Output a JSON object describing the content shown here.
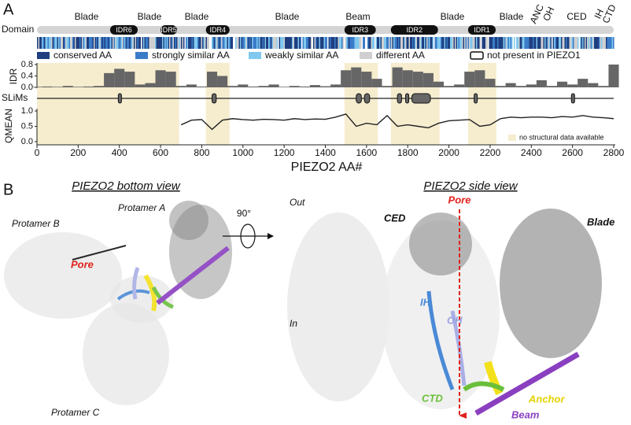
{
  "panel_a": {
    "label": "A",
    "domain_row_label": "Domain",
    "domains": [
      "Blade",
      "Blade",
      "Blade",
      "Blade",
      "Beam",
      "Blade",
      "Blade",
      "ANC",
      "OH",
      "CED",
      "IH",
      "CTD"
    ],
    "idrs": [
      {
        "name": "IDR6",
        "range": [
          355,
          489
        ]
      },
      {
        "name": "IDR5",
        "range": [
          600,
          680
        ]
      },
      {
        "name": "IDR4",
        "range": [
          820,
          935
        ]
      },
      {
        "name": "IDR3",
        "range": [
          1493,
          1645
        ]
      },
      {
        "name": "IDR2",
        "range": [
          1718,
          1947
        ]
      },
      {
        "name": "IDR1",
        "range": [
          2093,
          2227
        ]
      }
    ],
    "legend": [
      {
        "name": "conserved AA",
        "color": "#1f3f80"
      },
      {
        "name": "strongly similar AA",
        "color": "#3b7cc9"
      },
      {
        "name": "weakly similar AA",
        "color": "#80c8ef"
      },
      {
        "name": "different AA",
        "color": "#cfcfcf"
      },
      {
        "name": "not present in PIEZO1",
        "color": "#ffffff"
      }
    ],
    "unstructured_regions": [
      [
        0,
        690
      ],
      [
        820,
        935
      ],
      [
        1493,
        1655
      ],
      [
        1718,
        1955
      ],
      [
        2093,
        2230
      ]
    ],
    "x": [
      0,
      50,
      100,
      150,
      200,
      250,
      300,
      350,
      400,
      450,
      500,
      550,
      600,
      650,
      700,
      750,
      800,
      850,
      900,
      950,
      1000,
      1050,
      1100,
      1150,
      1200,
      1250,
      1300,
      1350,
      1400,
      1450,
      1500,
      1550,
      1600,
      1650,
      1700,
      1750,
      1800,
      1850,
      1900,
      1950,
      2000,
      2050,
      2100,
      2150,
      2200,
      2250,
      2300,
      2350,
      2400,
      2450,
      2500,
      2550,
      2600,
      2650,
      2700,
      2750,
      2800
    ],
    "idr": {
      "label": "IDR",
      "ylim": [
        0,
        0.8
      ],
      "yticks": [
        {
          "value": 0,
          "label": "0.0"
        },
        0.4,
        0.8
      ],
      "color": "#666666",
      "values": [
        0.02,
        0.03,
        0.02,
        0.05,
        0.02,
        0.03,
        0.05,
        0.5,
        0.65,
        0.55,
        0.1,
        0.15,
        0.6,
        0.55,
        0.05,
        0.1,
        0.03,
        0.55,
        0.4,
        0.05,
        0.1,
        0.03,
        0.05,
        0.1,
        0.02,
        0.05,
        0.03,
        0.08,
        0.04,
        0.1,
        0.6,
        0.7,
        0.55,
        0.3,
        0.05,
        0.7,
        0.6,
        0.55,
        0.5,
        0.2,
        0.05,
        0.1,
        0.55,
        0.6,
        0.3,
        0.05,
        0.15,
        0.05,
        0.1,
        0.25,
        0.05,
        0.2,
        0.1,
        0.3,
        0.15,
        0.05,
        0.8
      ]
    },
    "slims": {
      "label": "SLiMs",
      "ranges": [
        [
          395,
          410
        ],
        [
          850,
          870
        ],
        [
          1550,
          1575
        ],
        [
          1590,
          1615
        ],
        [
          1750,
          1770
        ],
        [
          1790,
          1805
        ],
        [
          1820,
          1910
        ],
        [
          2125,
          2135
        ],
        [
          2595,
          2610
        ]
      ]
    },
    "qmean": {
      "label": "QMEAN",
      "ylim": [
        0,
        1
      ],
      "yticks": [
        {
          "value": 0,
          "label": "0.0"
        },
        0.5,
        {
          "value": 1,
          "label": "1.0"
        }
      ],
      "color": "#222222",
      "values": [
        null,
        null,
        null,
        null,
        null,
        null,
        null,
        null,
        null,
        null,
        null,
        null,
        null,
        null,
        0.55,
        0.7,
        0.72,
        0.4,
        0.7,
        0.75,
        0.72,
        0.7,
        0.73,
        0.72,
        0.7,
        0.75,
        0.72,
        0.74,
        0.73,
        0.8,
        0.9,
        0.5,
        0.6,
        0.55,
        0.85,
        0.5,
        0.55,
        0.5,
        0.45,
        0.6,
        0.68,
        0.7,
        0.72,
        0.5,
        0.55,
        0.75,
        0.8,
        0.78,
        0.8,
        0.8,
        0.78,
        0.82,
        0.8,
        0.85,
        0.8,
        0.78,
        0.75
      ],
      "legend": "no structural data available"
    },
    "xaxis": {
      "label": "PIEZO2 AA#",
      "xlim": [
        0,
        2800
      ],
      "xticks": [
        0,
        200,
        400,
        600,
        800,
        1000,
        1200,
        1400,
        1600,
        1800,
        2000,
        2200,
        2400,
        2600,
        2800
      ]
    }
  },
  "panel_b": {
    "label": "B",
    "bottom_view": {
      "title": "PIEZO2 bottom view",
      "labels": [
        "Protamer A",
        "Protamer B",
        "Protamer C"
      ],
      "pore": "Pore"
    },
    "rotation": "90°",
    "side_view": {
      "title": "PIEZO2 side view",
      "out": "Out",
      "in": "In",
      "ced": "CED",
      "pore": "Pore",
      "blade": "Blade",
      "ih": "IH",
      "oh": "OH",
      "ctd": "CTD",
      "anchor": "Anchor",
      "beam": "Beam"
    }
  }
}
